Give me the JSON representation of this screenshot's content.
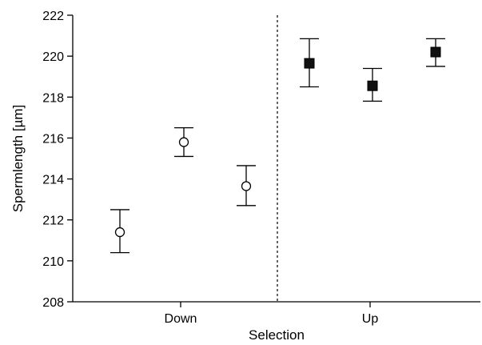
{
  "chart_data": {
    "type": "scatter",
    "xlabel": "Selection",
    "ylabel": "Spermlength [µm]",
    "ylim": [
      208,
      222
    ],
    "yticks": [
      208,
      210,
      212,
      214,
      216,
      218,
      220,
      222
    ],
    "categories": [
      "Down",
      "Up"
    ],
    "grid": false,
    "divider_between_groups": true,
    "series": [
      {
        "group": "Down",
        "marker": "open-circle",
        "points": [
          {
            "y": 211.4,
            "err_low": 210.4,
            "err_high": 212.5
          },
          {
            "y": 215.8,
            "err_low": 215.1,
            "err_high": 216.5
          },
          {
            "y": 213.65,
            "err_low": 212.7,
            "err_high": 214.65
          }
        ]
      },
      {
        "group": "Up",
        "marker": "filled-square",
        "points": [
          {
            "y": 219.65,
            "err_low": 218.5,
            "err_high": 220.85
          },
          {
            "y": 218.55,
            "err_low": 217.8,
            "err_high": 219.4
          },
          {
            "y": 220.2,
            "err_low": 219.5,
            "err_high": 220.85
          }
        ]
      }
    ]
  }
}
